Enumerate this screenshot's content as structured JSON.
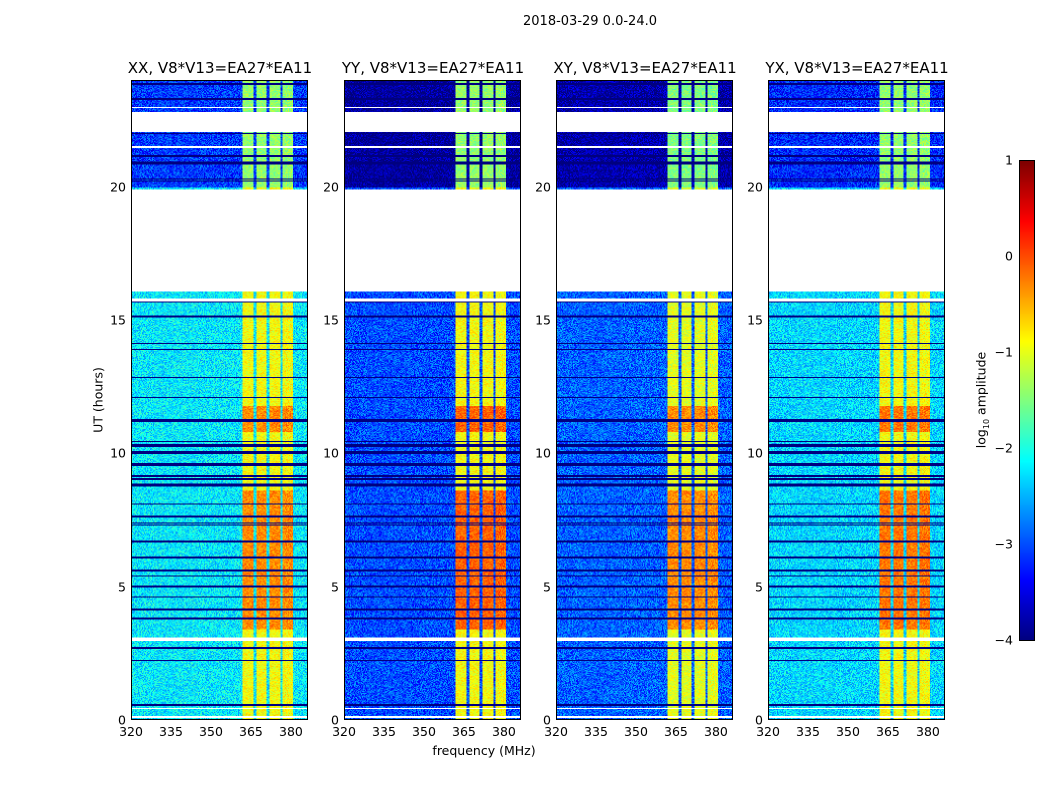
{
  "chart_data": {
    "type": "heatmap",
    "title": "2018-03-29 0.0-24.0",
    "xlabel": "frequency (MHz)",
    "ylabel": "UT (hours)",
    "xlim": [
      320,
      386.4
    ],
    "ylim": [
      0,
      24
    ],
    "xticks": [
      "320",
      "335",
      "350",
      "365",
      "380"
    ],
    "xtick_values": [
      320,
      335,
      350,
      365,
      380
    ],
    "yticks": [
      "0",
      "5",
      "10",
      "15",
      "20"
    ],
    "ytick_values": [
      0,
      5,
      10,
      15,
      20
    ],
    "colorbar": {
      "label_prefix": "log",
      "label_sub": "10",
      "label_suffix": " amplitude",
      "range": [
        -4,
        1
      ],
      "ticks": [
        "1",
        "0",
        "−1",
        "−2",
        "−3",
        "−4"
      ],
      "tick_values": [
        1,
        0,
        -1,
        -2,
        -3,
        -4
      ],
      "colormap": "jet"
    },
    "rfi_bands_mhz": [
      [
        362,
        366
      ],
      [
        367,
        371
      ],
      [
        372,
        376
      ],
      [
        377,
        381
      ]
    ],
    "flagged_ut_ranges": [
      [
        0.05,
        0.12
      ],
      [
        0.4,
        0.45
      ],
      [
        2.95,
        3.1
      ],
      [
        15.75,
        15.85
      ],
      [
        16.1,
        19.95
      ],
      [
        21.5,
        21.6
      ],
      [
        22.1,
        22.85
      ],
      [
        23.0,
        23.05
      ]
    ],
    "bright_ut_ranges": [
      [
        3.4,
        8.6
      ],
      [
        10.8,
        11.8
      ]
    ],
    "panels": [
      {
        "title": "XX, V8*V13=EA27*EA11",
        "base_level": -2.2,
        "band_level": -0.9,
        "bright_level": -0.3
      },
      {
        "title": "YY, V8*V13=EA27*EA11",
        "base_level": -3.0,
        "band_level": -0.9,
        "bright_level": -0.1
      },
      {
        "title": "XY, V8*V13=EA27*EA11",
        "base_level": -2.9,
        "band_level": -1.0,
        "bright_level": -0.3
      },
      {
        "title": "YX, V8*V13=EA27*EA11",
        "base_level": -2.3,
        "band_level": -0.9,
        "bright_level": -0.2
      }
    ]
  }
}
